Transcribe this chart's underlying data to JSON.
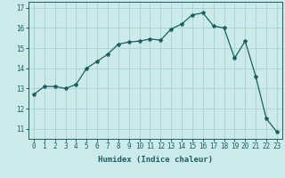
{
  "x": [
    0,
    1,
    2,
    3,
    4,
    5,
    6,
    7,
    8,
    9,
    10,
    11,
    12,
    13,
    14,
    15,
    16,
    17,
    18,
    19,
    20,
    21,
    22,
    23
  ],
  "y": [
    12.7,
    13.1,
    13.1,
    13.0,
    13.2,
    14.0,
    14.35,
    14.7,
    15.2,
    15.3,
    15.35,
    15.45,
    15.4,
    15.95,
    16.2,
    16.65,
    16.75,
    16.1,
    16.0,
    14.5,
    15.35,
    13.6,
    11.5,
    10.85
  ],
  "line_color": "#1a6060",
  "marker": "*",
  "marker_size": 3,
  "bg_color": "#cceaea",
  "grid_color": "#aad4d4",
  "xlabel": "Humidex (Indice chaleur)",
  "ylim": [
    10.5,
    17.3
  ],
  "xlim": [
    -0.5,
    23.5
  ],
  "yticks": [
    11,
    12,
    13,
    14,
    15,
    16,
    17
  ],
  "xticks": [
    0,
    1,
    2,
    3,
    4,
    5,
    6,
    7,
    8,
    9,
    10,
    11,
    12,
    13,
    14,
    15,
    16,
    17,
    18,
    19,
    20,
    21,
    22,
    23
  ],
  "axis_fontsize": 6.5,
  "tick_fontsize": 5.5
}
